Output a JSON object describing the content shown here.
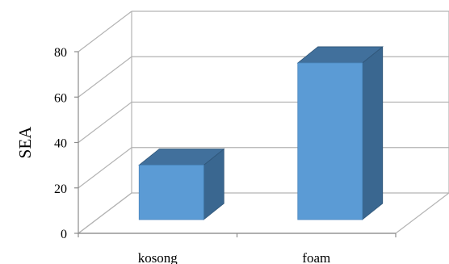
{
  "chart_data": {
    "type": "bar",
    "categories": [
      "kosong",
      "foam"
    ],
    "values": [
      24,
      69
    ],
    "title": "",
    "xlabel": "",
    "ylabel": "SEA",
    "ylim": [
      0,
      80
    ],
    "yticks": [
      0,
      20,
      40,
      60,
      80
    ],
    "grid": true,
    "legend": "none",
    "style": "3d-column",
    "colors": {
      "bar_front": "#5b9bd5",
      "bar_side": "#3a6790",
      "bar_top": "#41709c",
      "grid": "#b3b3b3",
      "axis": "#8c8c8c"
    }
  }
}
